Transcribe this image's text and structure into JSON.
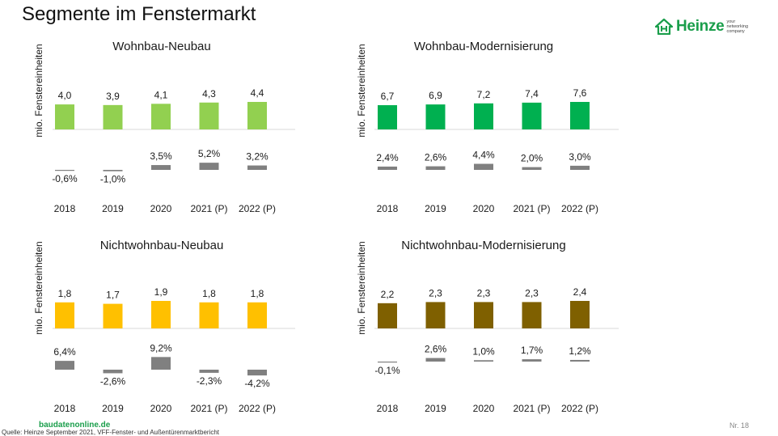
{
  "page": {
    "title": "Segmente im Fenstermarkt",
    "logo_name": "Heinze",
    "logo_tagline": "your networking company",
    "footer_brand": "baudatenonline.de",
    "source": "Quelle: Heinze September 2021, VFF-Fenster- und Außentürenmarktbericht",
    "page_number": "Nr. 18",
    "colors": {
      "brand": "#1a9e4b",
      "growth_bar": "#808080",
      "axis_line": "#d9d9d9"
    }
  },
  "chart_data": [
    {
      "type": "bar",
      "title": "Wohnbau-Neubau",
      "ylabel": "mio. Fenstereinheiten",
      "color": "#92d050",
      "categories": [
        "2018",
        "2019",
        "2020",
        "2021 (P)",
        "2022 (P)"
      ],
      "values": [
        4.0,
        3.9,
        4.1,
        4.3,
        4.4
      ],
      "value_labels": [
        "4,0",
        "3,9",
        "4,1",
        "4,3",
        "4,4"
      ],
      "growth_values": [
        -0.6,
        -1.0,
        3.5,
        5.2,
        3.2
      ],
      "growth_labels": [
        "-0,6%",
        "-1,0%",
        "3,5%",
        "5,2%",
        "3,2%"
      ]
    },
    {
      "type": "bar",
      "title": "Wohnbau-Modernisierung",
      "ylabel": "mio. Fenstereinheiten",
      "color": "#00b050",
      "categories": [
        "2018",
        "2019",
        "2020",
        "2021 (P)",
        "2022 (P)"
      ],
      "values": [
        6.7,
        6.9,
        7.2,
        7.4,
        7.6
      ],
      "value_labels": [
        "6,7",
        "6,9",
        "7,2",
        "7,4",
        "7,6"
      ],
      "growth_values": [
        2.4,
        2.6,
        4.4,
        2.0,
        3.0
      ],
      "growth_labels": [
        "2,4%",
        "2,6%",
        "4,4%",
        "2,0%",
        "3,0%"
      ]
    },
    {
      "type": "bar",
      "title": "Nichtwohnbau-Neubau",
      "ylabel": "mio. Fenstereinheiten",
      "color": "#ffc000",
      "categories": [
        "2018",
        "2019",
        "2020",
        "2021 (P)",
        "2022 (P)"
      ],
      "values": [
        1.8,
        1.7,
        1.9,
        1.8,
        1.8
      ],
      "value_labels": [
        "1,8",
        "1,7",
        "1,9",
        "1,8",
        "1,8"
      ],
      "growth_values": [
        6.4,
        -2.6,
        9.2,
        -2.3,
        -4.2
      ],
      "growth_labels": [
        "6,4%",
        "-2,6%",
        "9,2%",
        "-2,3%",
        "-4,2%"
      ]
    },
    {
      "type": "bar",
      "title": "Nichtwohnbau-Modernisierung",
      "ylabel": "mio. Fenstereinheiten",
      "color": "#7f6000",
      "categories": [
        "2018",
        "2019",
        "2020",
        "2021 (P)",
        "2022 (P)"
      ],
      "values": [
        2.2,
        2.3,
        2.3,
        2.3,
        2.4
      ],
      "value_labels": [
        "2,2",
        "2,3",
        "2,3",
        "2,3",
        "2,4"
      ],
      "growth_values": [
        -0.1,
        2.6,
        1.0,
        1.7,
        1.2
      ],
      "growth_labels": [
        "-0,1%",
        "2,6%",
        "1,0%",
        "1,7%",
        "1,2%"
      ]
    }
  ]
}
